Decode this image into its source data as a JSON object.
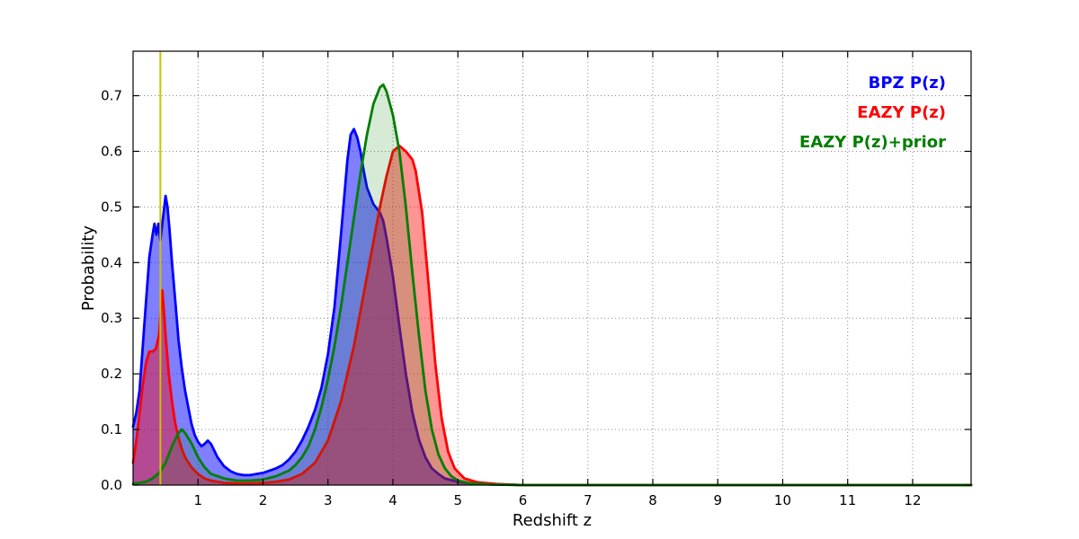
{
  "figure": {
    "background": "#ffffff"
  },
  "chart_data": {
    "type": "area",
    "title": "",
    "xlabel": "Redshift z",
    "ylabel": "Probability",
    "xlim": [
      0,
      12.9
    ],
    "ylim": [
      0,
      0.78
    ],
    "grid": true,
    "legend_position": "top-right-inside",
    "xticks": [
      1,
      2,
      3,
      4,
      5,
      6,
      7,
      8,
      9,
      10,
      11,
      12
    ],
    "yticks": [
      "0.0",
      "0.1",
      "0.2",
      "0.3",
      "0.4",
      "0.5",
      "0.6",
      "0.7"
    ],
    "marker_line": {
      "x": 0.42,
      "color": "#c9c400",
      "width": 2
    },
    "series": [
      {
        "name": "BPZ P(z)",
        "color": "#0000ff",
        "fill_opacity": 0.5,
        "points": [
          [
            0,
            0.105
          ],
          [
            0.05,
            0.13
          ],
          [
            0.1,
            0.17
          ],
          [
            0.15,
            0.25
          ],
          [
            0.2,
            0.33
          ],
          [
            0.25,
            0.41
          ],
          [
            0.3,
            0.45
          ],
          [
            0.33,
            0.47
          ],
          [
            0.36,
            0.45
          ],
          [
            0.39,
            0.47
          ],
          [
            0.42,
            0.44
          ],
          [
            0.45,
            0.47
          ],
          [
            0.48,
            0.5
          ],
          [
            0.5,
            0.52
          ],
          [
            0.53,
            0.5
          ],
          [
            0.56,
            0.46
          ],
          [
            0.6,
            0.4
          ],
          [
            0.65,
            0.33
          ],
          [
            0.7,
            0.26
          ],
          [
            0.75,
            0.21
          ],
          [
            0.8,
            0.17
          ],
          [
            0.85,
            0.14
          ],
          [
            0.9,
            0.11
          ],
          [
            0.95,
            0.09
          ],
          [
            1.0,
            0.078
          ],
          [
            1.05,
            0.07
          ],
          [
            1.1,
            0.074
          ],
          [
            1.15,
            0.08
          ],
          [
            1.2,
            0.074
          ],
          [
            1.25,
            0.062
          ],
          [
            1.3,
            0.05
          ],
          [
            1.4,
            0.034
          ],
          [
            1.5,
            0.025
          ],
          [
            1.6,
            0.02
          ],
          [
            1.7,
            0.018
          ],
          [
            1.8,
            0.018
          ],
          [
            1.9,
            0.02
          ],
          [
            2.0,
            0.022
          ],
          [
            2.1,
            0.026
          ],
          [
            2.2,
            0.03
          ],
          [
            2.3,
            0.036
          ],
          [
            2.4,
            0.046
          ],
          [
            2.5,
            0.06
          ],
          [
            2.6,
            0.08
          ],
          [
            2.7,
            0.105
          ],
          [
            2.8,
            0.135
          ],
          [
            2.9,
            0.175
          ],
          [
            3.0,
            0.235
          ],
          [
            3.1,
            0.32
          ],
          [
            3.2,
            0.45
          ],
          [
            3.3,
            0.585
          ],
          [
            3.35,
            0.63
          ],
          [
            3.4,
            0.64
          ],
          [
            3.45,
            0.625
          ],
          [
            3.5,
            0.6
          ],
          [
            3.55,
            0.565
          ],
          [
            3.6,
            0.535
          ],
          [
            3.7,
            0.505
          ],
          [
            3.8,
            0.49
          ],
          [
            3.85,
            0.475
          ],
          [
            3.9,
            0.445
          ],
          [
            4.0,
            0.375
          ],
          [
            4.1,
            0.285
          ],
          [
            4.2,
            0.2
          ],
          [
            4.3,
            0.13
          ],
          [
            4.4,
            0.082
          ],
          [
            4.5,
            0.05
          ],
          [
            4.6,
            0.03
          ],
          [
            4.7,
            0.02
          ],
          [
            4.8,
            0.012
          ],
          [
            5.0,
            0.006
          ],
          [
            5.3,
            0.002
          ],
          [
            5.7,
            0.001
          ],
          [
            6.0,
            0
          ],
          [
            12.9,
            0
          ]
        ]
      },
      {
        "name": "EAZY P(z)",
        "color": "#ff0000",
        "fill_opacity": 0.42,
        "points": [
          [
            0,
            0.04
          ],
          [
            0.05,
            0.08
          ],
          [
            0.1,
            0.13
          ],
          [
            0.15,
            0.18
          ],
          [
            0.2,
            0.22
          ],
          [
            0.25,
            0.24
          ],
          [
            0.3,
            0.24
          ],
          [
            0.35,
            0.245
          ],
          [
            0.4,
            0.27
          ],
          [
            0.43,
            0.32
          ],
          [
            0.45,
            0.35
          ],
          [
            0.47,
            0.32
          ],
          [
            0.5,
            0.27
          ],
          [
            0.55,
            0.2
          ],
          [
            0.6,
            0.15
          ],
          [
            0.65,
            0.11
          ],
          [
            0.7,
            0.085
          ],
          [
            0.75,
            0.065
          ],
          [
            0.8,
            0.05
          ],
          [
            0.9,
            0.032
          ],
          [
            1.0,
            0.02
          ],
          [
            1.1,
            0.012
          ],
          [
            1.2,
            0.008
          ],
          [
            1.4,
            0.004
          ],
          [
            1.6,
            0.003
          ],
          [
            1.8,
            0.003
          ],
          [
            2.0,
            0.004
          ],
          [
            2.2,
            0.006
          ],
          [
            2.4,
            0.01
          ],
          [
            2.6,
            0.02
          ],
          [
            2.8,
            0.04
          ],
          [
            3.0,
            0.08
          ],
          [
            3.2,
            0.15
          ],
          [
            3.4,
            0.25
          ],
          [
            3.6,
            0.375
          ],
          [
            3.8,
            0.5
          ],
          [
            3.9,
            0.555
          ],
          [
            4.0,
            0.6
          ],
          [
            4.1,
            0.61
          ],
          [
            4.2,
            0.6
          ],
          [
            4.3,
            0.585
          ],
          [
            4.35,
            0.565
          ],
          [
            4.45,
            0.49
          ],
          [
            4.55,
            0.36
          ],
          [
            4.65,
            0.22
          ],
          [
            4.75,
            0.12
          ],
          [
            4.85,
            0.06
          ],
          [
            4.95,
            0.03
          ],
          [
            5.1,
            0.012
          ],
          [
            5.3,
            0.005
          ],
          [
            5.6,
            0.002
          ],
          [
            6.0,
            0
          ],
          [
            12.9,
            0
          ]
        ]
      },
      {
        "name": "EAZY P(z)+prior",
        "color": "#007f00",
        "fill_opacity": 0.16,
        "points": [
          [
            0,
            0.002
          ],
          [
            0.2,
            0.006
          ],
          [
            0.3,
            0.012
          ],
          [
            0.4,
            0.022
          ],
          [
            0.5,
            0.04
          ],
          [
            0.6,
            0.07
          ],
          [
            0.7,
            0.094
          ],
          [
            0.75,
            0.1
          ],
          [
            0.8,
            0.094
          ],
          [
            0.9,
            0.075
          ],
          [
            1.0,
            0.05
          ],
          [
            1.1,
            0.032
          ],
          [
            1.2,
            0.02
          ],
          [
            1.4,
            0.012
          ],
          [
            1.6,
            0.008
          ],
          [
            1.8,
            0.008
          ],
          [
            2.0,
            0.01
          ],
          [
            2.2,
            0.016
          ],
          [
            2.4,
            0.026
          ],
          [
            2.5,
            0.036
          ],
          [
            2.6,
            0.05
          ],
          [
            2.7,
            0.07
          ],
          [
            2.8,
            0.1
          ],
          [
            2.9,
            0.14
          ],
          [
            3.0,
            0.19
          ],
          [
            3.1,
            0.25
          ],
          [
            3.2,
            0.32
          ],
          [
            3.3,
            0.4
          ],
          [
            3.4,
            0.48
          ],
          [
            3.5,
            0.56
          ],
          [
            3.6,
            0.63
          ],
          [
            3.7,
            0.685
          ],
          [
            3.8,
            0.715
          ],
          [
            3.85,
            0.72
          ],
          [
            3.9,
            0.708
          ],
          [
            4.0,
            0.665
          ],
          [
            4.1,
            0.6
          ],
          [
            4.2,
            0.5
          ],
          [
            4.3,
            0.38
          ],
          [
            4.4,
            0.27
          ],
          [
            4.5,
            0.17
          ],
          [
            4.6,
            0.1
          ],
          [
            4.7,
            0.055
          ],
          [
            4.8,
            0.03
          ],
          [
            4.9,
            0.016
          ],
          [
            5.0,
            0.008
          ],
          [
            5.2,
            0.003
          ],
          [
            5.5,
            0.001
          ],
          [
            6.0,
            0
          ],
          [
            12.9,
            0
          ]
        ]
      }
    ]
  }
}
